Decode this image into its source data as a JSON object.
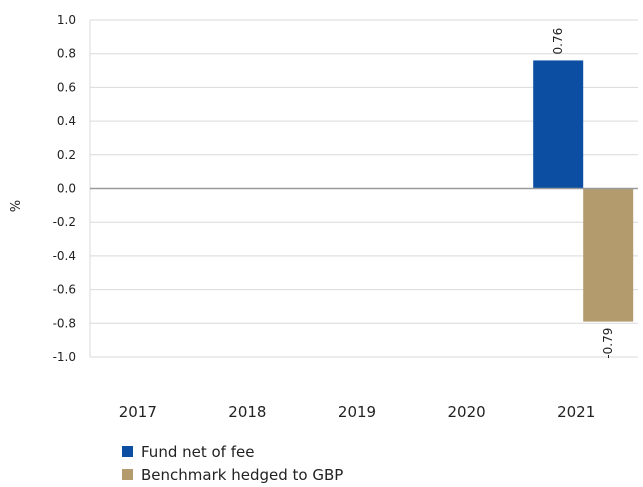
{
  "chart_data": {
    "type": "bar",
    "categories": [
      "2017",
      "2018",
      "2019",
      "2020",
      "2021"
    ],
    "series": [
      {
        "name": "Fund net of fee",
        "color": "#0B4EA2",
        "values": [
          null,
          null,
          null,
          null,
          0.76
        ]
      },
      {
        "name": "Benchmark hedged to GBP",
        "color": "#B39B6E",
        "values": [
          null,
          null,
          null,
          null,
          -0.79
        ]
      }
    ],
    "data_labels": [
      "0.76",
      "-0.79"
    ],
    "title": "",
    "xlabel": "",
    "ylabel": "%",
    "ylim": [
      -1.0,
      1.0
    ],
    "yticks": [
      "1.0",
      "0.8",
      "0.6",
      "0.4",
      "0.2",
      "0.0",
      "-0.2",
      "-0.4",
      "-0.6",
      "-0.8",
      "-1.0"
    ],
    "grid": true,
    "legend_position": "bottom-left"
  }
}
